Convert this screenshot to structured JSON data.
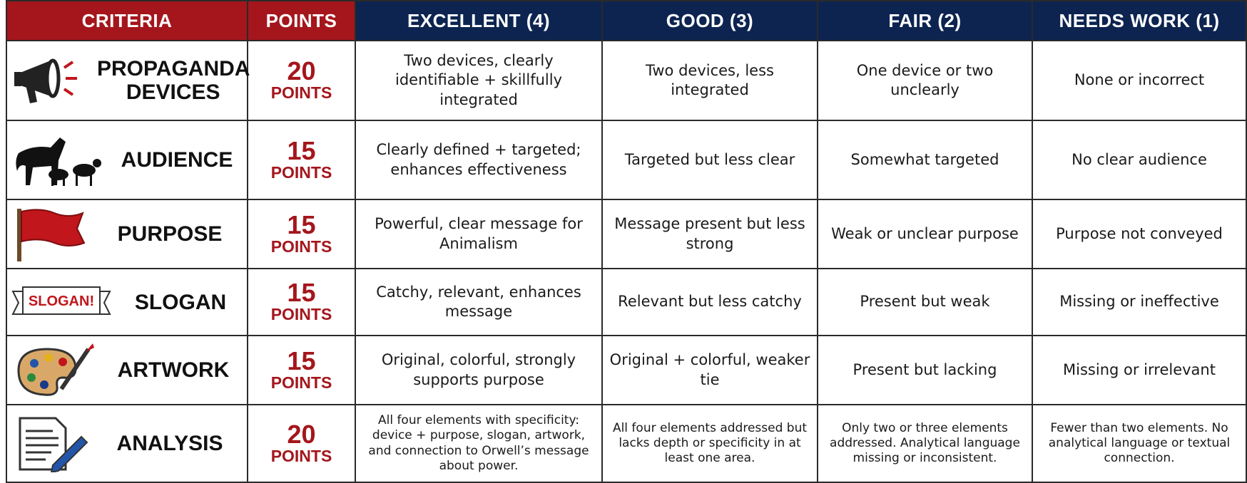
{
  "table": {
    "header": [
      "CRITERIA",
      "POINTS",
      "EXCELLENT (4)",
      "GOOD (3)",
      "FAIR (2)",
      "NEEDS WORK (1)"
    ],
    "rows": [
      {
        "criterion": "PROPAGANDA DEVICES",
        "points": "20",
        "unit": "POINTS",
        "cells": [
          "Two devices, clearly identifiable + skillfully integrated",
          "Two devices, less integrated",
          "One device or two unclearly",
          "None or incorrect"
        ]
      },
      {
        "criterion": "AUDIENCE",
        "points": "15",
        "unit": "POINTS",
        "cells": [
          "Clearly defined + targeted; enhances effectiveness",
          "Targeted but less clear",
          "Somewhat targeted",
          "No clear audience"
        ]
      },
      {
        "criterion": "PURPOSE",
        "points": "15",
        "unit": "POINTS",
        "cells": [
          "Powerful, clear message for Animalism",
          "Message present but less strong",
          "Weak or unclear purpose",
          "Purpose not conveyed"
        ]
      },
      {
        "criterion": "SLOGAN",
        "icon_text": "SLOGAN!",
        "points": "15",
        "unit": "POINTS",
        "cells": [
          "Catchy, relevant, enhances message",
          "Relevant but less catchy",
          "Present but weak",
          "Missing or ineffective"
        ]
      },
      {
        "criterion": "ARTWORK",
        "points": "15",
        "unit": "POINTS",
        "cells": [
          "Original, colorful, strongly supports purpose",
          "Original + colorful, weaker tie",
          "Present but lacking",
          "Missing or irrelevant"
        ]
      },
      {
        "criterion": "ANALYSIS",
        "points": "20",
        "unit": "POINTS",
        "cells": [
          "All four elements with specificity: device + purpose, slogan, artwork, and connection to Orwell’s message about power.",
          "All four elements addressed but lacks depth or specificity in at least one area.",
          "Only two or three elements addressed. Analytical language missing or inconsistent.",
          "Fewer than two elements. No analytical language or textual connection."
        ]
      }
    ]
  }
}
